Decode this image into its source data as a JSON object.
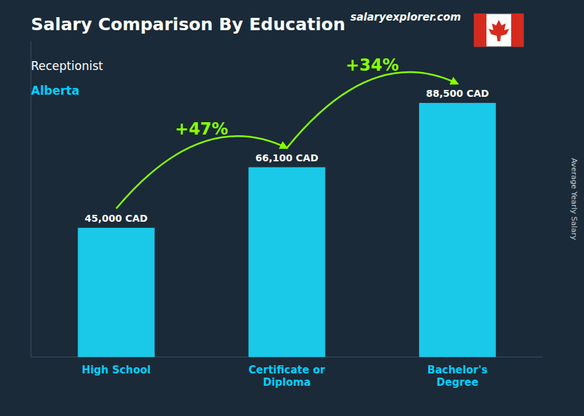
{
  "chart_data": {
    "type": "bar",
    "title": "Salary Comparison By Education",
    "subtitle": [
      "Receptionist",
      "Alberta"
    ],
    "ylabel": "Average Yearly Salary",
    "categories": [
      "High School",
      "Certificate or\nDiploma",
      "Bachelor's\nDegree"
    ],
    "values": [
      45000,
      66100,
      88500
    ],
    "value_labels": [
      "45,000 CAD",
      "66,100 CAD",
      "88,500 CAD"
    ],
    "data_labels": true,
    "color": "#1ac8e8",
    "ylim": [
      0,
      110000
    ],
    "tick_labels": "x",
    "grid": false,
    "annotations": [
      "+47%",
      "+34%",
      "salaryexplorer.com"
    ]
  }
}
